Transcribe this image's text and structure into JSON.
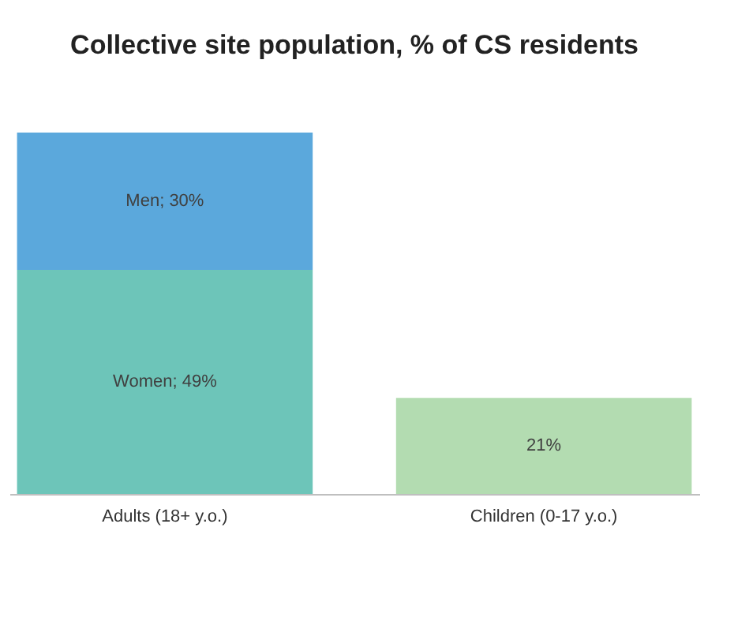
{
  "chart_data": {
    "type": "bar",
    "title": "Collective site population, % of CS residents",
    "categories": [
      "Adults (18+ y.o.)",
      "Children (0-17 y.o.)"
    ],
    "stacked": true,
    "legend": false,
    "series": [
      {
        "color": "#6dc5b9",
        "values": [
          49,
          null
        ],
        "value_labels": [
          "Women; 49%",
          null
        ]
      },
      {
        "color": "#5ba8dc",
        "values": [
          30,
          null
        ],
        "value_labels": [
          "Men; 30%",
          null
        ]
      },
      {
        "color": "#b3dcb1",
        "values": [
          null,
          21
        ],
        "value_labels": [
          null,
          "21%"
        ]
      }
    ]
  }
}
